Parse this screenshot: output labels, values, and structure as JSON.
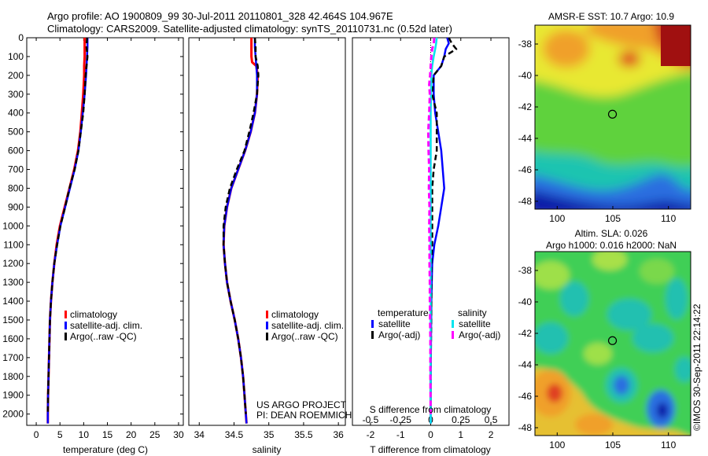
{
  "header": {
    "line1": "Argo profile: AO 1900809_99 30-Jul-2011 20110801_328 42.464S 104.967E",
    "line2": "Climatology: CARS2009. Satellite-adjusted climatology: synTS_20110731.nc (0.52d later)"
  },
  "colors": {
    "climatology": "#ff0000",
    "satellite": "#0000ff",
    "argo": "#000000",
    "sal_satellite": "#00e5ee",
    "sal_argo": "#ff00ff"
  },
  "depth_ticks": [
    0,
    100,
    200,
    300,
    400,
    500,
    600,
    700,
    800,
    900,
    1000,
    1100,
    1200,
    1300,
    1400,
    1500,
    1600,
    1700,
    1800,
    1900,
    2000
  ],
  "chart_data": [
    {
      "type": "line",
      "id": "temperature",
      "xlabel": "temperature (deg C)",
      "ylabel": "",
      "xlim": [
        -2,
        31
      ],
      "ylim": [
        2060,
        0
      ],
      "xticks": [
        0,
        5,
        10,
        15,
        20,
        25,
        30
      ],
      "legend": [
        "climatology",
        "satellite-adj. clim.",
        "Argo(..raw -QC)"
      ],
      "series": [
        {
          "name": "climatology",
          "depth": [
            0,
            50,
            100,
            150,
            200,
            300,
            400,
            500,
            600,
            700,
            800,
            900,
            1000,
            1100,
            1200,
            1300,
            1400,
            1500,
            1600,
            1700,
            1800,
            1900,
            2000,
            2050
          ],
          "values": [
            10.2,
            10.2,
            10.2,
            10.1,
            10.1,
            9.9,
            9.6,
            9.3,
            8.8,
            8.0,
            7.0,
            6.0,
            5.0,
            4.3,
            3.8,
            3.4,
            3.1,
            2.9,
            2.8,
            2.7,
            2.6,
            2.5,
            2.45,
            2.45
          ]
        },
        {
          "name": "satellite-adj. clim.",
          "depth": [
            0,
            50,
            100,
            150,
            200,
            300,
            400,
            500,
            600,
            700,
            800,
            900,
            1000,
            1100,
            1200,
            1300,
            1400,
            1500,
            1600,
            1700,
            1800,
            1900,
            2000,
            2050
          ],
          "values": [
            10.8,
            10.8,
            10.7,
            10.6,
            10.5,
            10.2,
            9.8,
            9.4,
            8.9,
            8.1,
            7.1,
            6.1,
            5.1,
            4.4,
            3.8,
            3.4,
            3.1,
            2.9,
            2.8,
            2.7,
            2.6,
            2.5,
            2.45,
            2.45
          ]
        },
        {
          "name": "Argo(..raw -QC)",
          "depth": [
            0,
            50,
            100,
            150,
            200,
            300,
            400,
            500,
            600,
            700,
            800,
            900,
            1000,
            1100,
            1200,
            1300,
            1400,
            1500,
            1600,
            1700,
            1800,
            1900,
            2000
          ],
          "values": [
            10.7,
            10.6,
            10.8,
            10.6,
            10.4,
            10.2,
            9.9,
            9.4,
            8.9,
            8.1,
            7.0,
            6.1,
            5.1,
            4.4,
            3.8,
            3.4,
            3.1,
            2.9,
            2.8,
            2.7,
            2.6,
            2.5,
            2.45
          ]
        }
      ]
    },
    {
      "type": "line",
      "id": "salinity",
      "xlabel": "salinity",
      "ylabel": "",
      "xlim": [
        33.85,
        36.1
      ],
      "ylim": [
        2060,
        0
      ],
      "xticks": [
        34,
        34.5,
        35,
        35.5,
        36
      ],
      "legend": [
        "climatology",
        "satellite-adj. clim.",
        "Argo(..raw -QC)"
      ],
      "annotation": [
        "US ARGO PROJECT",
        "PI: DEAN ROEMMICH"
      ],
      "series": [
        {
          "name": "climatology",
          "depth": [
            0,
            50,
            100,
            130,
            150,
            200,
            300,
            400,
            500,
            600,
            700,
            800,
            900,
            1000,
            1100,
            1200,
            1300,
            1400,
            1500,
            1600,
            1700,
            1800,
            1900,
            2000,
            2050
          ],
          "values": [
            34.75,
            34.75,
            34.75,
            34.76,
            34.82,
            34.84,
            34.83,
            34.8,
            34.74,
            34.66,
            34.56,
            34.46,
            34.4,
            34.36,
            34.35,
            34.37,
            34.4,
            34.45,
            34.51,
            34.56,
            34.6,
            34.63,
            34.65,
            34.67,
            34.68
          ]
        },
        {
          "name": "satellite-adj. clim.",
          "depth": [
            0,
            50,
            100,
            150,
            200,
            300,
            400,
            500,
            600,
            700,
            800,
            900,
            1000,
            1100,
            1200,
            1300,
            1400,
            1500,
            1600,
            1700,
            1800,
            1900,
            2000,
            2050
          ],
          "values": [
            34.8,
            34.8,
            34.81,
            34.82,
            34.83,
            34.83,
            34.8,
            34.74,
            34.66,
            34.56,
            34.46,
            34.4,
            34.36,
            34.35,
            34.37,
            34.4,
            34.45,
            34.51,
            34.56,
            34.6,
            34.63,
            34.65,
            34.67,
            34.68
          ]
        },
        {
          "name": "Argo(..raw -QC)",
          "depth": [
            0,
            50,
            100,
            150,
            200,
            300,
            400,
            500,
            600,
            700,
            800,
            900,
            1000,
            1100,
            1200,
            1300,
            1400,
            1500,
            1600,
            1700,
            1800,
            1900,
            2000
          ],
          "values": [
            34.8,
            34.81,
            34.81,
            34.84,
            34.85,
            34.83,
            34.78,
            34.72,
            34.65,
            34.54,
            34.44,
            34.38,
            34.35,
            34.35,
            34.37,
            34.4,
            34.45,
            34.51,
            34.56,
            34.6,
            34.63,
            34.65,
            34.67
          ]
        }
      ]
    },
    {
      "type": "line",
      "id": "difference",
      "xlabel": "T difference from climatology",
      "xlabel_top": "S difference from climatology",
      "xlim": [
        -2.6,
        2.6
      ],
      "ylim": [
        2060,
        0
      ],
      "xticks": [
        -2,
        -1,
        0,
        1,
        2
      ],
      "xticks_s": [
        "-0.5",
        "-0.25",
        "0",
        "0.25",
        "0.5"
      ],
      "legend_groups": [
        {
          "title": "temperature",
          "items": [
            "satellite",
            "Argo(-adj)"
          ]
        },
        {
          "title": "salinity",
          "items": [
            "satellite",
            "Argo(-adj)"
          ]
        }
      ],
      "series": [
        {
          "name": "temperature satellite",
          "depth": [
            0,
            30,
            60,
            100,
            150,
            200,
            300,
            400,
            500,
            600,
            700,
            800,
            900,
            1000,
            1100,
            1200,
            1400,
            1600,
            1800,
            2000,
            2050
          ],
          "values": [
            0.55,
            0.6,
            0.5,
            0.45,
            0.35,
            0.1,
            0.1,
            0.15,
            0.25,
            0.35,
            0.4,
            0.45,
            0.35,
            0.25,
            0.12,
            0.05,
            0.02,
            0.01,
            0.0,
            0.0,
            0.0
          ]
        },
        {
          "name": "temperature Argo(-adj)",
          "depth": [
            0,
            30,
            60,
            100,
            150,
            200,
            300,
            400,
            500,
            600,
            700,
            800,
            900,
            1000,
            1100,
            1200,
            1400,
            1600,
            1800,
            2000
          ],
          "values": [
            0.6,
            0.7,
            0.85,
            0.45,
            0.35,
            0.1,
            0.05,
            0.2,
            0.2,
            0.2,
            0.1,
            0.05,
            0.05,
            0.05,
            0.05,
            0.02,
            0.02,
            0.01,
            0.0,
            0.0
          ]
        },
        {
          "name": "salinity satellite",
          "depth": [
            0,
            30,
            60,
            100,
            150,
            200,
            300,
            400,
            500,
            600,
            700,
            800,
            900,
            1000,
            1200,
            1400,
            1600,
            1800,
            2000,
            2050
          ],
          "values": [
            0.2,
            0.18,
            0.15,
            0.1,
            0.05,
            0.02,
            0.01,
            0.0,
            0.0,
            0.0,
            0.0,
            0.0,
            0.0,
            0.0,
            0.0,
            0.0,
            0.0,
            0.0,
            0.0,
            0.0
          ]
        },
        {
          "name": "salinity Argo(-adj)",
          "depth": [
            0,
            30,
            60,
            100,
            150,
            200,
            250,
            300,
            400,
            500,
            600,
            700,
            800,
            900,
            1000,
            1100,
            1200,
            1300,
            1400,
            1500,
            1600,
            1800,
            2000
          ],
          "values": [
            0.12,
            0.1,
            0.05,
            0.02,
            0.0,
            -0.02,
            -0.05,
            -0.03,
            -0.05,
            -0.08,
            -0.07,
            -0.05,
            -0.06,
            -0.04,
            -0.05,
            -0.04,
            -0.04,
            -0.03,
            -0.03,
            -0.02,
            -0.01,
            -0.01,
            0.0
          ]
        }
      ]
    },
    {
      "type": "heatmap",
      "id": "sst_map",
      "title": "AMSR-E SST: 10.7 Argo: 10.9",
      "xlim": [
        98,
        112
      ],
      "ylim": [
        -48.5,
        -36.8
      ],
      "xticks": [
        100,
        105,
        110
      ],
      "yticks": [
        -38,
        -40,
        -42,
        -44,
        -46,
        -48
      ],
      "marker": {
        "lon": 104.967,
        "lat": -42.464
      }
    },
    {
      "type": "heatmap",
      "id": "sla_map",
      "title": [
        "Altim. SLA: 0.026",
        "Argo h1000: 0.016 h2000: NaN"
      ],
      "xlim": [
        98,
        112
      ],
      "ylim": [
        -48.5,
        -36.8
      ],
      "xticks": [
        100,
        105,
        110
      ],
      "yticks": [
        -38,
        -40,
        -42,
        -44,
        -46,
        -48
      ],
      "marker": {
        "lon": 104.967,
        "lat": -42.464
      }
    }
  ],
  "footer_stamp": "©IMOS 30-Sep-2011 22:14:22"
}
